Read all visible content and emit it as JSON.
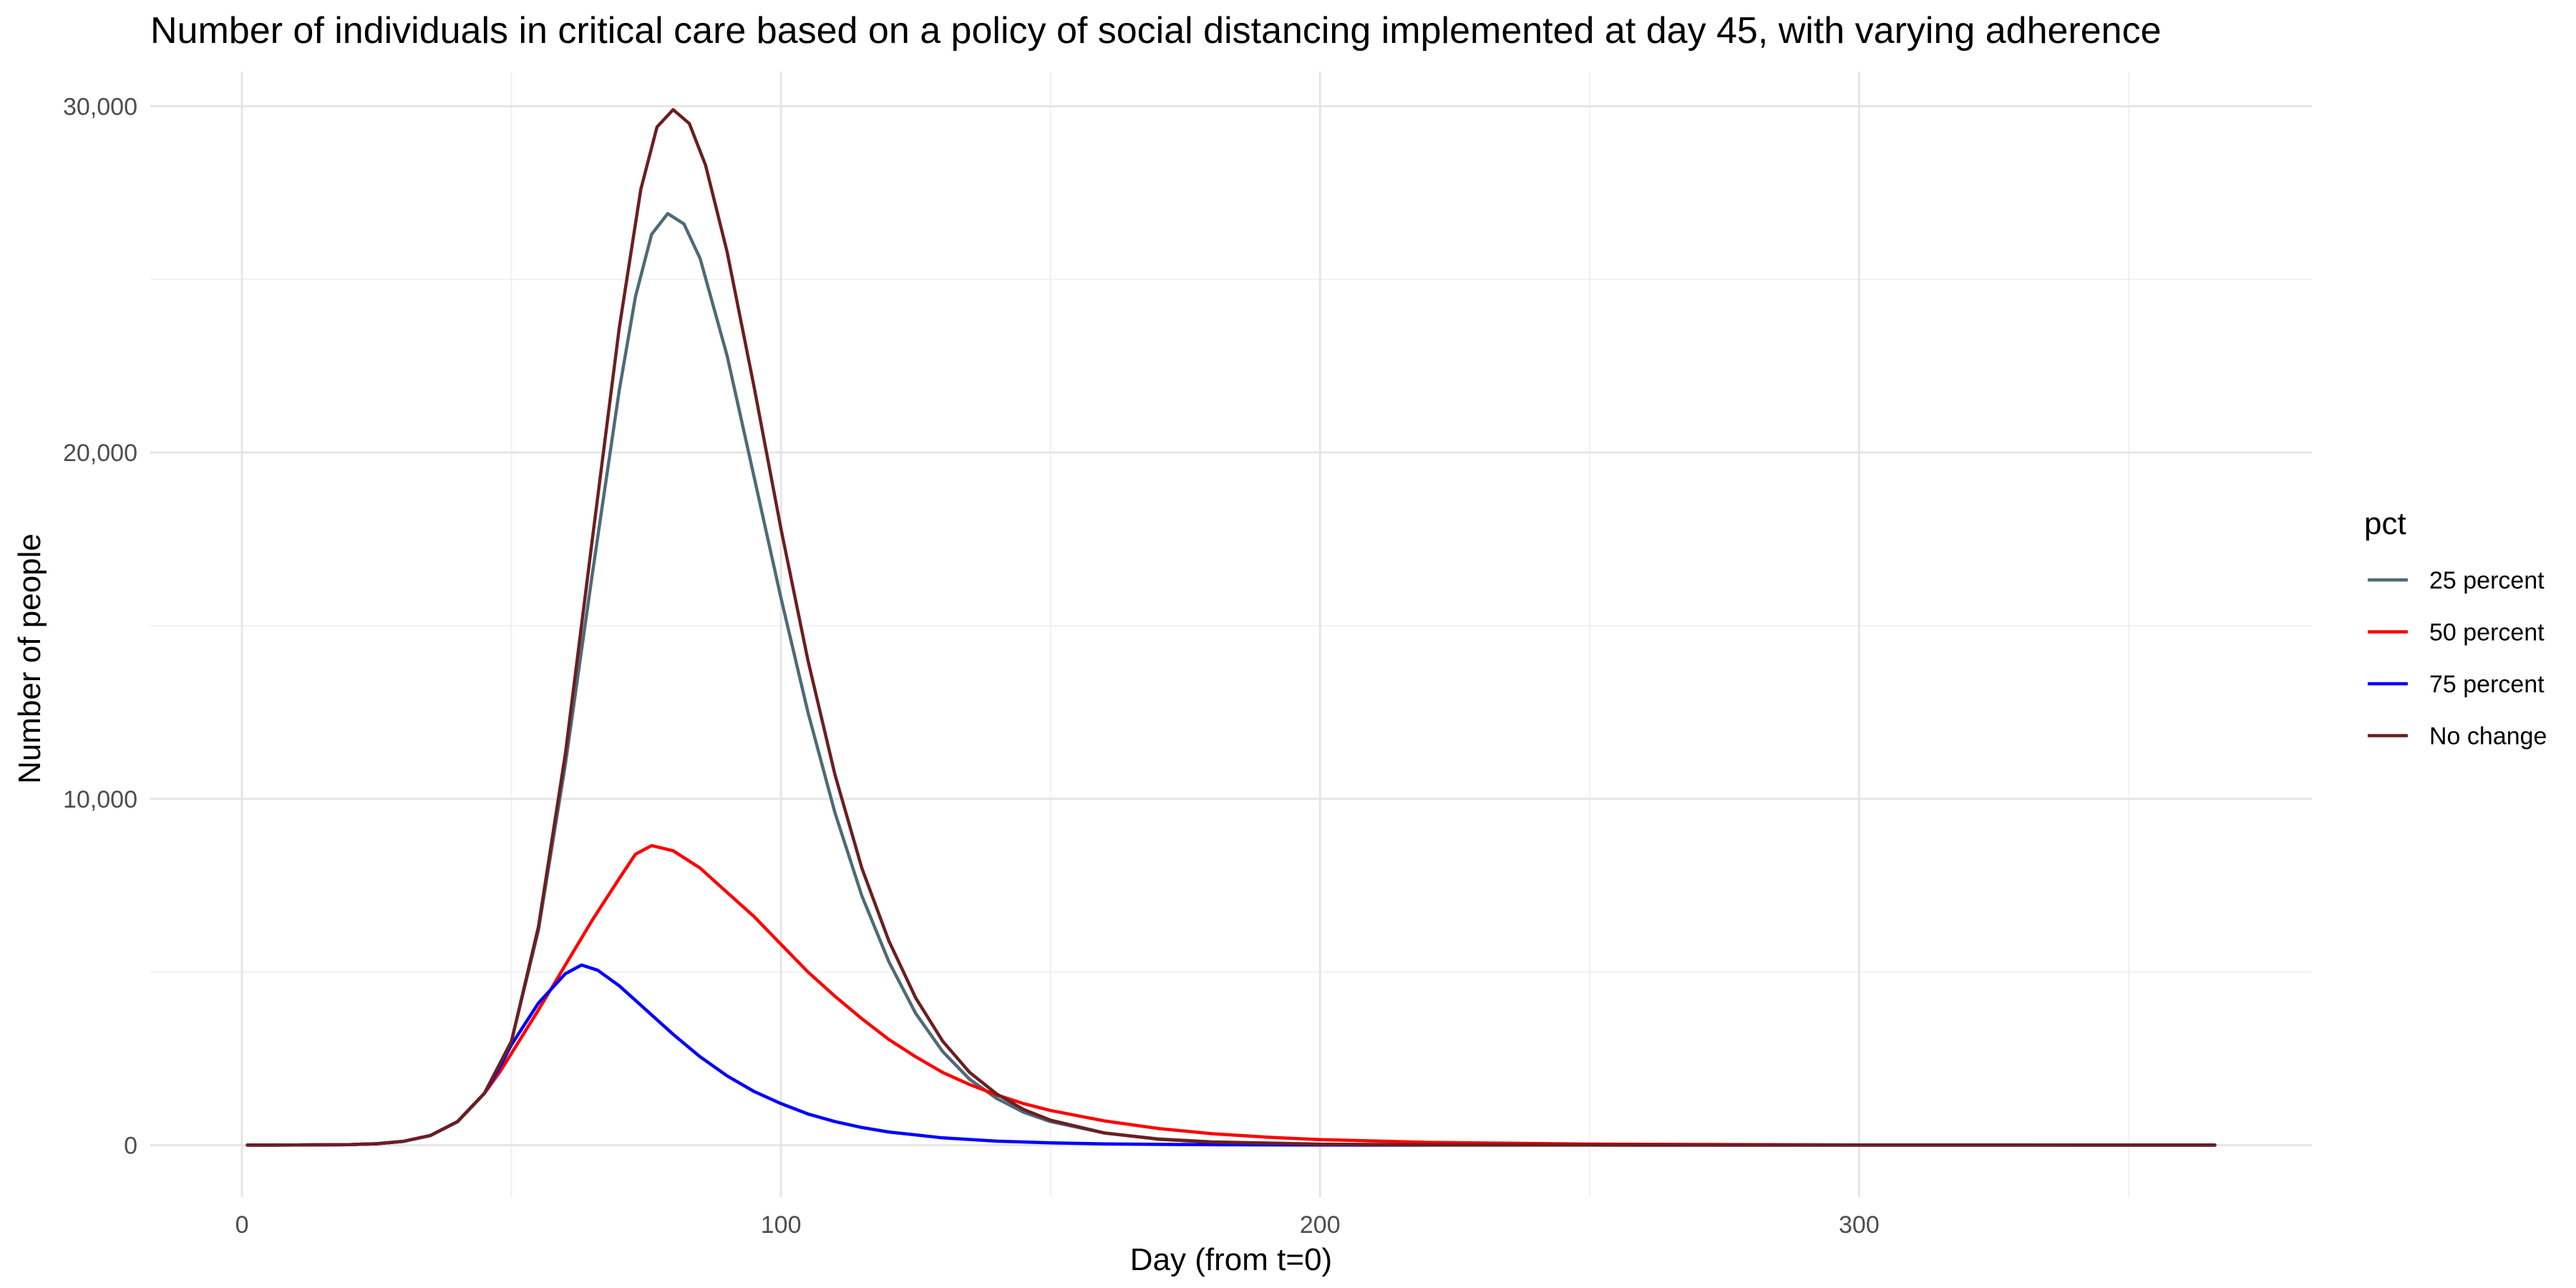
{
  "chart_data": {
    "type": "line",
    "title": "Number of individuals in critical care based on a policy of social distancing implemented at day 45, with varying adherence",
    "xlabel": "Day (from t=0)",
    "ylabel": "Number of people",
    "xlim": [
      -17,
      384
    ],
    "ylim": [
      -1500,
      31000
    ],
    "x_ticks": [
      {
        "value": 0,
        "label": "0"
      },
      {
        "value": 100,
        "label": "100"
      },
      {
        "value": 200,
        "label": "200"
      },
      {
        "value": 300,
        "label": "300"
      }
    ],
    "x_minor_ticks": [
      50,
      150,
      250,
      350
    ],
    "y_ticks": [
      {
        "value": 0,
        "label": "0"
      },
      {
        "value": 10000,
        "label": "10,000"
      },
      {
        "value": 20000,
        "label": "20,000"
      },
      {
        "value": 30000,
        "label": "30,000"
      }
    ],
    "y_minor_ticks": [
      5000,
      15000,
      25000
    ],
    "grid": true,
    "legend": {
      "title": "pct",
      "placement": "right"
    },
    "series": [
      {
        "name": "25 percent",
        "color": "#4f6a78",
        "points": [
          [
            1,
            0
          ],
          [
            10,
            2
          ],
          [
            20,
            15
          ],
          [
            25,
            40
          ],
          [
            30,
            110
          ],
          [
            35,
            280
          ],
          [
            40,
            680
          ],
          [
            45,
            1500
          ],
          [
            50,
            3000
          ],
          [
            55,
            6200
          ],
          [
            60,
            11000
          ],
          [
            65,
            16500
          ],
          [
            70,
            21800
          ],
          [
            73,
            24500
          ],
          [
            76,
            26300
          ],
          [
            79,
            26900
          ],
          [
            82,
            26600
          ],
          [
            85,
            25600
          ],
          [
            90,
            22800
          ],
          [
            95,
            19300
          ],
          [
            100,
            15800
          ],
          [
            105,
            12500
          ],
          [
            110,
            9600
          ],
          [
            115,
            7200
          ],
          [
            120,
            5300
          ],
          [
            125,
            3800
          ],
          [
            130,
            2700
          ],
          [
            135,
            1900
          ],
          [
            140,
            1350
          ],
          [
            145,
            950
          ],
          [
            150,
            680
          ],
          [
            160,
            350
          ],
          [
            170,
            180
          ],
          [
            180,
            95
          ],
          [
            200,
            30
          ],
          [
            225,
            10
          ],
          [
            250,
            4
          ],
          [
            300,
            1
          ],
          [
            366,
            0
          ]
        ]
      },
      {
        "name": "50 percent",
        "color": "#ff0000",
        "points": [
          [
            1,
            0
          ],
          [
            10,
            2
          ],
          [
            20,
            15
          ],
          [
            25,
            40
          ],
          [
            30,
            110
          ],
          [
            35,
            280
          ],
          [
            40,
            680
          ],
          [
            45,
            1500
          ],
          [
            48,
            2150
          ],
          [
            50,
            2650
          ],
          [
            55,
            3900
          ],
          [
            60,
            5200
          ],
          [
            65,
            6500
          ],
          [
            70,
            7700
          ],
          [
            73,
            8400
          ],
          [
            76,
            8650
          ],
          [
            80,
            8500
          ],
          [
            85,
            8000
          ],
          [
            90,
            7300
          ],
          [
            95,
            6600
          ],
          [
            100,
            5800
          ],
          [
            105,
            5000
          ],
          [
            110,
            4300
          ],
          [
            115,
            3650
          ],
          [
            120,
            3050
          ],
          [
            125,
            2550
          ],
          [
            130,
            2100
          ],
          [
            135,
            1750
          ],
          [
            140,
            1450
          ],
          [
            145,
            1200
          ],
          [
            150,
            1000
          ],
          [
            160,
            700
          ],
          [
            170,
            480
          ],
          [
            180,
            330
          ],
          [
            190,
            230
          ],
          [
            200,
            160
          ],
          [
            220,
            80
          ],
          [
            250,
            30
          ],
          [
            300,
            5
          ],
          [
            366,
            0
          ]
        ]
      },
      {
        "name": "75 percent",
        "color": "#0000ff",
        "points": [
          [
            1,
            0
          ],
          [
            10,
            2
          ],
          [
            20,
            15
          ],
          [
            25,
            40
          ],
          [
            30,
            110
          ],
          [
            35,
            280
          ],
          [
            40,
            680
          ],
          [
            45,
            1500
          ],
          [
            48,
            2300
          ],
          [
            50,
            2900
          ],
          [
            55,
            4100
          ],
          [
            60,
            4950
          ],
          [
            63,
            5200
          ],
          [
            66,
            5050
          ],
          [
            70,
            4600
          ],
          [
            75,
            3900
          ],
          [
            80,
            3200
          ],
          [
            85,
            2550
          ],
          [
            90,
            2000
          ],
          [
            95,
            1550
          ],
          [
            100,
            1200
          ],
          [
            105,
            900
          ],
          [
            110,
            680
          ],
          [
            115,
            510
          ],
          [
            120,
            380
          ],
          [
            130,
            210
          ],
          [
            140,
            115
          ],
          [
            150,
            65
          ],
          [
            160,
            36
          ],
          [
            180,
            12
          ],
          [
            200,
            4
          ],
          [
            250,
            1
          ],
          [
            366,
            0
          ]
        ]
      },
      {
        "name": "No change",
        "color": "#6b1f1f",
        "points": [
          [
            1,
            0
          ],
          [
            10,
            2
          ],
          [
            20,
            15
          ],
          [
            25,
            40
          ],
          [
            30,
            110
          ],
          [
            35,
            280
          ],
          [
            40,
            680
          ],
          [
            45,
            1500
          ],
          [
            50,
            3000
          ],
          [
            55,
            6300
          ],
          [
            60,
            11300
          ],
          [
            65,
            17500
          ],
          [
            70,
            23600
          ],
          [
            74,
            27600
          ],
          [
            77,
            29400
          ],
          [
            80,
            29900
          ],
          [
            83,
            29500
          ],
          [
            86,
            28300
          ],
          [
            90,
            25800
          ],
          [
            95,
            21900
          ],
          [
            100,
            17800
          ],
          [
            105,
            14000
          ],
          [
            110,
            10700
          ],
          [
            115,
            8000
          ],
          [
            120,
            5900
          ],
          [
            125,
            4250
          ],
          [
            130,
            3000
          ],
          [
            135,
            2100
          ],
          [
            140,
            1480
          ],
          [
            145,
            1030
          ],
          [
            150,
            720
          ],
          [
            160,
            350
          ],
          [
            170,
            170
          ],
          [
            180,
            85
          ],
          [
            200,
            22
          ],
          [
            225,
            6
          ],
          [
            250,
            2
          ],
          [
            300,
            0
          ],
          [
            366,
            0
          ]
        ]
      }
    ]
  }
}
